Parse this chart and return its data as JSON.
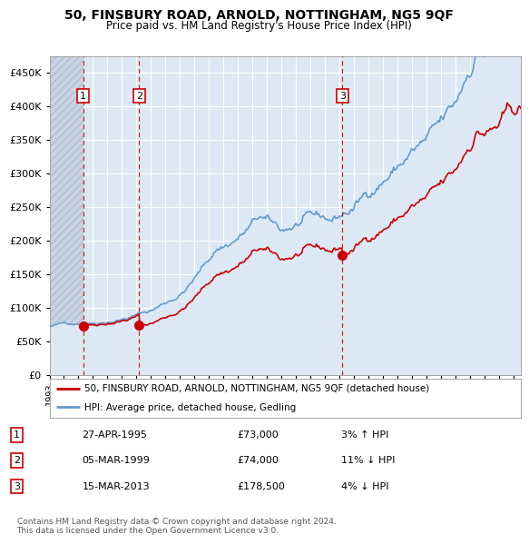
{
  "title": "50, FINSBURY ROAD, ARNOLD, NOTTINGHAM, NG5 9QF",
  "subtitle": "Price paid vs. HM Land Registry's House Price Index (HPI)",
  "ylim": [
    0,
    475000
  ],
  "yticks": [
    0,
    50000,
    100000,
    150000,
    200000,
    250000,
    300000,
    350000,
    400000,
    450000
  ],
  "ytick_labels": [
    "£0",
    "£50K",
    "£100K",
    "£150K",
    "£200K",
    "£250K",
    "£300K",
    "£350K",
    "£400K",
    "£450K"
  ],
  "xlim_start": 1993.0,
  "xlim_end": 2025.5,
  "background_color": "#ffffff",
  "plot_bg_color": "#dce9f5",
  "grid_color": "#ffffff",
  "sale_dates": [
    1995.32,
    1999.18,
    2013.21
  ],
  "sale_prices": [
    73000,
    74000,
    178500
  ],
  "sale_labels": [
    "1",
    "2",
    "3"
  ],
  "red_line_color": "#cc0000",
  "blue_line_color": "#6699cc",
  "blue_fill_color": "#dce9f5",
  "label_box_color": "#cc0000",
  "legend_red_label": "50, FINSBURY ROAD, ARNOLD, NOTTINGHAM, NG5 9QF (detached house)",
  "legend_blue_label": "HPI: Average price, detached house, Gedling",
  "transaction_1_date": "27-APR-1995",
  "transaction_1_price": "£73,000",
  "transaction_1_hpi": "3% ↑ HPI",
  "transaction_2_date": "05-MAR-1999",
  "transaction_2_price": "£74,000",
  "transaction_2_hpi": "11% ↓ HPI",
  "transaction_3_date": "15-MAR-2013",
  "transaction_3_price": "£178,500",
  "transaction_3_hpi": "4% ↓ HPI",
  "footer": "Contains HM Land Registry data © Crown copyright and database right 2024.\nThis data is licensed under the Open Government Licence v3.0."
}
